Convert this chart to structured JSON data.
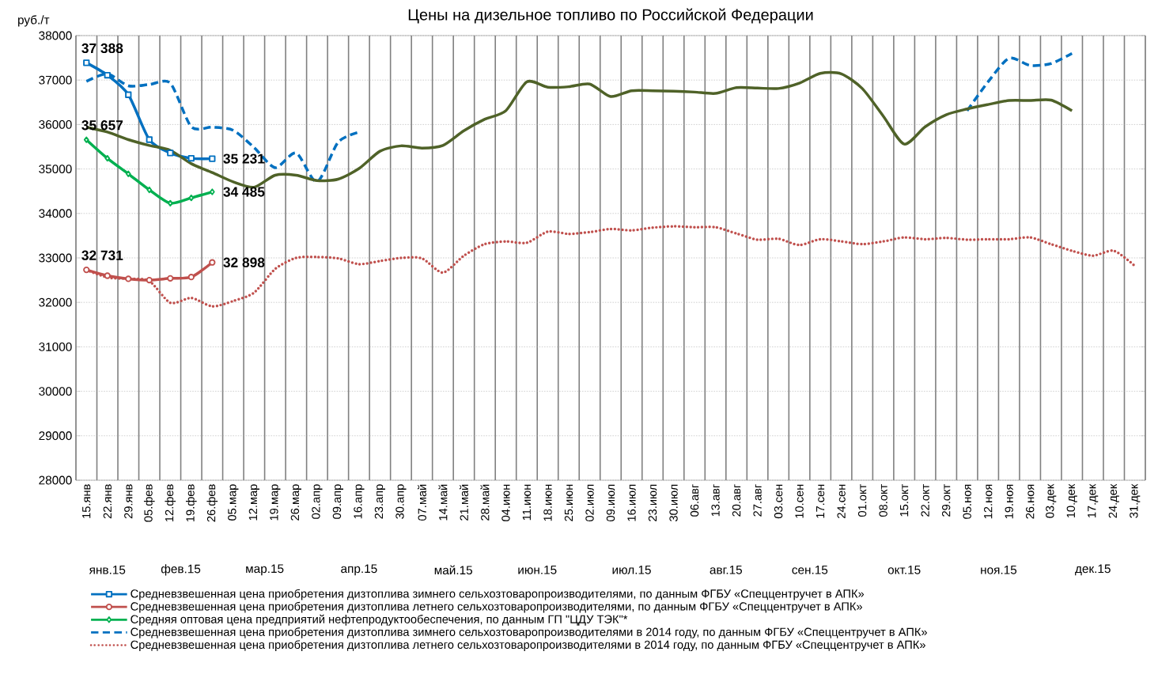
{
  "chart_data": {
    "type": "line",
    "title": "Цены на дизельное топливо по Российской Федерации",
    "ylabel": "руб./т",
    "categories": [
      "15.янв",
      "22.янв",
      "29.янв",
      "05.фев",
      "12.фев",
      "19.фев",
      "26.фев",
      "05.мар",
      "12.мар",
      "19.мар",
      "26.мар",
      "02.апр",
      "09.апр",
      "16.апр",
      "23.апр",
      "30.апр",
      "07.май",
      "14.май",
      "21.май",
      "28.май",
      "04.июн",
      "11.июн",
      "18.июн",
      "25.июн",
      "02.июл",
      "09.июл",
      "16.июл",
      "23.июл",
      "30.июл",
      "06.авг",
      "13.авг",
      "20.авг",
      "27.авг",
      "03.сен",
      "10.сен",
      "17.сен",
      "24.сен",
      "01.окт",
      "08.окт",
      "15.окт",
      "22.окт",
      "29.окт",
      "05.ноя",
      "12.ноя",
      "19.ноя",
      "26.ноя",
      "03.дек",
      "10.дек",
      "17.дек",
      "24.дек",
      "31.дек"
    ],
    "series": [
      {
        "name": "Средневзвешенная цена приобретения дизтоплива зимнего сельхозтоваропроизводителями, по данным ФГБУ «Спеццентручет в АПК»",
        "color": "#0070c0",
        "marker": "square",
        "line_style": "solid",
        "values": [
          37388,
          37110,
          36670,
          35660,
          35360,
          35240,
          35231,
          null,
          null,
          null,
          null,
          null,
          null,
          null,
          null,
          null,
          null,
          null,
          null,
          null,
          null,
          null,
          null,
          null,
          null,
          null,
          null,
          null,
          null,
          null,
          null,
          null,
          null,
          null,
          null,
          null,
          null,
          null,
          null,
          null,
          null,
          null,
          null,
          null,
          null,
          null,
          null,
          null,
          null,
          null,
          null
        ],
        "value_labels": [
          "37 388",
          null,
          null,
          null,
          null,
          null,
          "35 231",
          null,
          null,
          null,
          null,
          null,
          null,
          null,
          null,
          null,
          null,
          null,
          null,
          null,
          null,
          null,
          null,
          null,
          null,
          null,
          null,
          null,
          null,
          null,
          null,
          null,
          null,
          null,
          null,
          null,
          null,
          null,
          null,
          null,
          null,
          null,
          null,
          null,
          null,
          null,
          null,
          null,
          null,
          null,
          null
        ]
      },
      {
        "name": "Средневзвешенная цена приобретения дизтоплива летнего сельхозтоваропроизводителями, по данным ФГБУ «Спеццентручет в АПК»",
        "color": "#c0504d",
        "marker": "circle",
        "line_style": "solid",
        "values": [
          32731,
          32600,
          32530,
          32500,
          32540,
          32570,
          32898,
          null,
          null,
          null,
          null,
          null,
          null,
          null,
          null,
          null,
          null,
          null,
          null,
          null,
          null,
          null,
          null,
          null,
          null,
          null,
          null,
          null,
          null,
          null,
          null,
          null,
          null,
          null,
          null,
          null,
          null,
          null,
          null,
          null,
          null,
          null,
          null,
          null,
          null,
          null,
          null,
          null,
          null,
          null,
          null
        ],
        "value_labels": [
          "32 731",
          null,
          null,
          null,
          null,
          null,
          "32 898",
          null,
          null,
          null,
          null,
          null,
          null,
          null,
          null,
          null,
          null,
          null,
          null,
          null,
          null,
          null,
          null,
          null,
          null,
          null,
          null,
          null,
          null,
          null,
          null,
          null,
          null,
          null,
          null,
          null,
          null,
          null,
          null,
          null,
          null,
          null,
          null,
          null,
          null,
          null,
          null,
          null,
          null,
          null,
          null
        ]
      },
      {
        "name": "Средняя оптовая цена предприятий нефтепродуктообеспечения, по данным ГП \"ЦДУ ТЭК\"*",
        "color": "#00b050",
        "marker": "diamond",
        "line_style": "solid",
        "values": [
          35657,
          35240,
          34890,
          34530,
          34230,
          34350,
          34485,
          null,
          null,
          null,
          null,
          null,
          null,
          null,
          null,
          null,
          null,
          null,
          null,
          null,
          null,
          null,
          null,
          null,
          null,
          null,
          null,
          null,
          null,
          null,
          null,
          null,
          null,
          null,
          null,
          null,
          null,
          null,
          null,
          null,
          null,
          null,
          null,
          null,
          null,
          null,
          null,
          null,
          null,
          null,
          null
        ],
        "value_labels": [
          "35 657",
          null,
          null,
          null,
          null,
          null,
          "34 485",
          null,
          null,
          null,
          null,
          null,
          null,
          null,
          null,
          null,
          null,
          null,
          null,
          null,
          null,
          null,
          null,
          null,
          null,
          null,
          null,
          null,
          null,
          null,
          null,
          null,
          null,
          null,
          null,
          null,
          null,
          null,
          null,
          null,
          null,
          null,
          null,
          null,
          null,
          null,
          null,
          null,
          null,
          null,
          null
        ]
      },
      {
        "name": "Средневзвешенная цена приобретения дизтоплива зимнего сельхозтоваропроизводителями в 2014 году, по данным ФГБУ «Спеццентручет в АПК»",
        "color": "#0070c0",
        "line_style": "dashed",
        "values": [
          36970,
          37140,
          36870,
          36900,
          36930,
          35950,
          35940,
          35870,
          35480,
          35030,
          35360,
          34710,
          35600,
          35830,
          null,
          null,
          null,
          null,
          null,
          null,
          null,
          null,
          null,
          null,
          null,
          null,
          null,
          null,
          null,
          null,
          null,
          null,
          null,
          null,
          null,
          null,
          null,
          null,
          null,
          null,
          null,
          null,
          36310,
          36960,
          37490,
          37330,
          37370,
          37600,
          null,
          null,
          null
        ]
      },
      {
        "name": "Средневзвешенная цена приобретения дизтоплива летнего сельхозтоваропроизводителями в 2014 году, по данным ФГБУ «Спеццентручет в АПК»",
        "color": "#c0504d",
        "line_style": "dotted",
        "values": [
          32730,
          32560,
          32530,
          32480,
          31990,
          32100,
          31910,
          32030,
          32220,
          32750,
          33000,
          33020,
          32990,
          32860,
          32930,
          33000,
          32990,
          32670,
          33050,
          33310,
          33370,
          33340,
          33590,
          33540,
          33580,
          33650,
          33620,
          33680,
          33710,
          33690,
          33690,
          33550,
          33410,
          33430,
          33290,
          33420,
          33370,
          33310,
          33370,
          33460,
          33420,
          33450,
          33410,
          33420,
          33420,
          33460,
          33310,
          33160,
          33050,
          33160,
          32820
        ]
      },
      {
        "color": "#4f6228",
        "line_style": "solid",
        "values": [
          35940,
          35830,
          35660,
          35530,
          35420,
          35120,
          34920,
          34710,
          34590,
          34860,
          34860,
          34740,
          34770,
          35010,
          35400,
          35520,
          35470,
          35530,
          35860,
          36120,
          36310,
          36960,
          36840,
          36850,
          36910,
          36630,
          36760,
          36760,
          36750,
          36730,
          36700,
          36830,
          36820,
          36810,
          36930,
          37150,
          37140,
          36810,
          36190,
          35560,
          35950,
          36220,
          36350,
          36450,
          36540,
          36540,
          36550,
          36310,
          null,
          null,
          null
        ]
      }
    ],
    "ylim": [
      28000,
      38000
    ],
    "yticks": [
      28000,
      29000,
      30000,
      31000,
      32000,
      33000,
      34000,
      35000,
      36000,
      37000,
      38000
    ],
    "grid": true,
    "legend": "bottom",
    "annotations": [
      "янв.15",
      "фев.15",
      "мар.15",
      "апр.15",
      "май.15",
      "июн.15",
      "июл.15",
      "авг.15",
      "сен.15",
      "окт.15",
      "ноя.15",
      "дек.15"
    ]
  }
}
